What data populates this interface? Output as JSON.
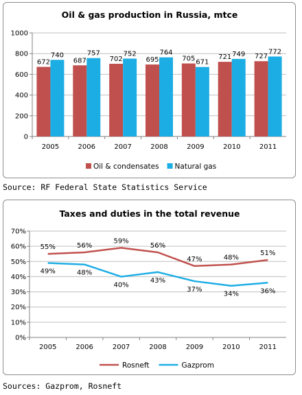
{
  "chart_data": [
    {
      "type": "bar",
      "title": "Oil & gas production in Russia, mtce",
      "categories": [
        "2005",
        "2006",
        "2007",
        "2008",
        "2009",
        "2010",
        "2011"
      ],
      "series": [
        {
          "name": "Oil & condensates",
          "values": [
            672,
            687,
            702,
            695,
            705,
            721,
            727
          ],
          "color": "#c0504d"
        },
        {
          "name": "Natural gas",
          "values": [
            740,
            757,
            752,
            764,
            671,
            749,
            772
          ],
          "color": "#1cade4"
        }
      ],
      "ylim": [
        0,
        1000
      ],
      "yticks": [
        "0",
        "200",
        "400",
        "600",
        "800",
        "1000"
      ],
      "grid": true,
      "legend": "bottom",
      "source": "Source: RF Federal State Statistics Service"
    },
    {
      "type": "line",
      "title": "Taxes and duties in the total revenue",
      "categories": [
        "2005",
        "2006",
        "2007",
        "2008",
        "2009",
        "2010",
        "2011"
      ],
      "series": [
        {
          "name": "Rosneft",
          "values": [
            55,
            56,
            59,
            56,
            47,
            48,
            51
          ],
          "labels": [
            "55%",
            "56%",
            "59%",
            "56%",
            "47%",
            "48%",
            "51%"
          ],
          "color": "#c0504d"
        },
        {
          "name": "Gazprom",
          "values": [
            49,
            48,
            40,
            43,
            37,
            34,
            36
          ],
          "labels": [
            "49%",
            "48%",
            "40%",
            "43%",
            "37%",
            "34%",
            "36%"
          ],
          "color": "#1cade4"
        }
      ],
      "ylim": [
        0,
        70
      ],
      "yticks": [
        "0%",
        "10%",
        "20%",
        "30%",
        "40%",
        "50%",
        "60%",
        "70%"
      ],
      "grid": true,
      "legend": "bottom",
      "source": "Sources: Gazprom, Rosneft"
    }
  ]
}
